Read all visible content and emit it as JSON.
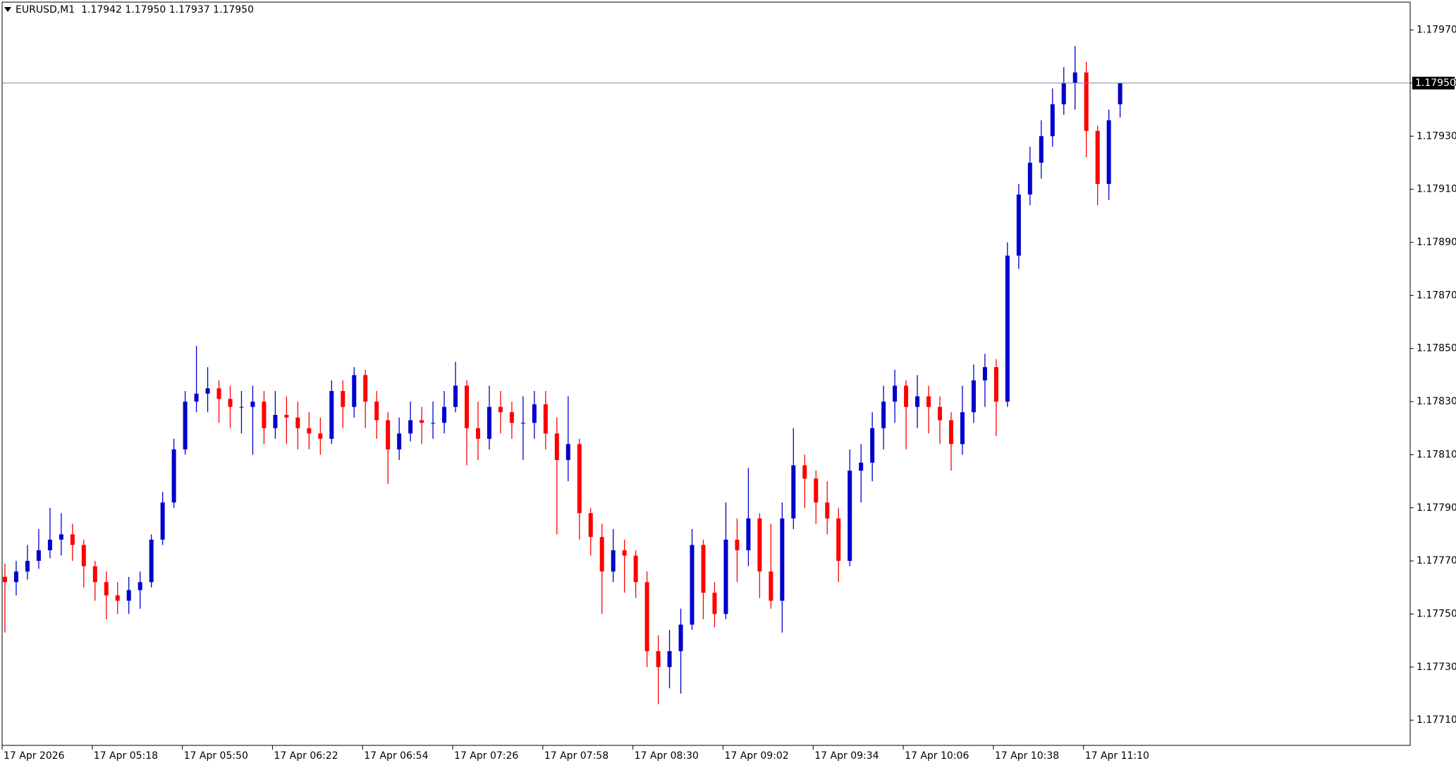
{
  "chart_data": {
    "type": "candlestick",
    "title": "EURUSD,M1  1.17942 1.17950 1.17937 1.17950",
    "up_color": "#0000cc",
    "down_color": "#ff0000",
    "last_price": {
      "value": 1.1795,
      "label": "1.17950"
    },
    "ylim": [
      1.177005,
      1.179805
    ],
    "yticks": [
      {
        "value": 1.1771,
        "label": "1.17710"
      },
      {
        "value": 1.1773,
        "label": "1.17730"
      },
      {
        "value": 1.1775,
        "label": "1.17750"
      },
      {
        "value": 1.1777,
        "label": "1.17770"
      },
      {
        "value": 1.1779,
        "label": "1.17790"
      },
      {
        "value": 1.1781,
        "label": "1.17810"
      },
      {
        "value": 1.1783,
        "label": "1.17830"
      },
      {
        "value": 1.1785,
        "label": "1.17850"
      },
      {
        "value": 1.1787,
        "label": "1.17870"
      },
      {
        "value": 1.1789,
        "label": "1.17890"
      },
      {
        "value": 1.1791,
        "label": "1.17910"
      },
      {
        "value": 1.1793,
        "label": "1.17930"
      },
      {
        "value": 1.1795,
        "label": "1.17950"
      },
      {
        "value": 1.1797,
        "label": "1.17970"
      }
    ],
    "xlim": [
      0,
      125
    ],
    "xticks": [
      {
        "value": 0,
        "label": "17 Apr 2026"
      },
      {
        "value": 8,
        "label": "17 Apr 05:18"
      },
      {
        "value": 16,
        "label": "17 Apr 05:50"
      },
      {
        "value": 24,
        "label": "17 Apr 06:22"
      },
      {
        "value": 32,
        "label": "17 Apr 06:54"
      },
      {
        "value": 40,
        "label": "17 Apr 07:26"
      },
      {
        "value": 48,
        "label": "17 Apr 07:58"
      },
      {
        "value": 56,
        "label": "17 Apr 08:30"
      },
      {
        "value": 64,
        "label": "17 Apr 09:02"
      },
      {
        "value": 72,
        "label": "17 Apr 09:34"
      },
      {
        "value": 80,
        "label": "17 Apr 10:06"
      },
      {
        "value": 88,
        "label": "17 Apr 10:38"
      },
      {
        "value": 96,
        "label": "17 Apr 11:10"
      }
    ],
    "candles": [
      [
        1.17764,
        1.17769,
        1.17743,
        1.17762
      ],
      [
        1.17762,
        1.1777,
        1.17757,
        1.17766
      ],
      [
        1.17766,
        1.17776,
        1.17763,
        1.1777
      ],
      [
        1.1777,
        1.17782,
        1.17767,
        1.17774
      ],
      [
        1.17774,
        1.1779,
        1.17771,
        1.17778
      ],
      [
        1.17778,
        1.17788,
        1.17772,
        1.1778
      ],
      [
        1.1778,
        1.17784,
        1.1777,
        1.17776
      ],
      [
        1.17776,
        1.17778,
        1.1776,
        1.17768
      ],
      [
        1.17768,
        1.1777,
        1.17755,
        1.17762
      ],
      [
        1.17762,
        1.17766,
        1.17748,
        1.17757
      ],
      [
        1.17757,
        1.17762,
        1.1775,
        1.17755
      ],
      [
        1.17755,
        1.17764,
        1.1775,
        1.17759
      ],
      [
        1.17759,
        1.17766,
        1.17752,
        1.17762
      ],
      [
        1.17762,
        1.1778,
        1.1776,
        1.17778
      ],
      [
        1.17778,
        1.17796,
        1.17776,
        1.17792
      ],
      [
        1.17792,
        1.17816,
        1.1779,
        1.17812
      ],
      [
        1.17812,
        1.17834,
        1.1781,
        1.1783
      ],
      [
        1.1783,
        1.17851,
        1.17826,
        1.17833
      ],
      [
        1.17833,
        1.17843,
        1.17826,
        1.17835
      ],
      [
        1.17835,
        1.17838,
        1.17822,
        1.17831
      ],
      [
        1.17831,
        1.17836,
        1.1782,
        1.17828
      ],
      [
        1.17828,
        1.17834,
        1.17818,
        1.17828
      ],
      [
        1.17828,
        1.17836,
        1.1781,
        1.1783
      ],
      [
        1.1783,
        1.17834,
        1.17814,
        1.1782
      ],
      [
        1.1782,
        1.17834,
        1.17816,
        1.17825
      ],
      [
        1.17825,
        1.17832,
        1.17814,
        1.17824
      ],
      [
        1.17824,
        1.1783,
        1.17812,
        1.1782
      ],
      [
        1.1782,
        1.17826,
        1.17812,
        1.17818
      ],
      [
        1.17818,
        1.17824,
        1.1781,
        1.17816
      ],
      [
        1.17816,
        1.17838,
        1.17814,
        1.17834
      ],
      [
        1.17834,
        1.17838,
        1.1782,
        1.17828
      ],
      [
        1.17828,
        1.17843,
        1.17824,
        1.1784
      ],
      [
        1.1784,
        1.17842,
        1.1782,
        1.1783
      ],
      [
        1.1783,
        1.17834,
        1.17816,
        1.17823
      ],
      [
        1.17823,
        1.17826,
        1.17799,
        1.17812
      ],
      [
        1.17812,
        1.17824,
        1.17808,
        1.17818
      ],
      [
        1.17818,
        1.1783,
        1.17815,
        1.17823
      ],
      [
        1.17823,
        1.17828,
        1.17814,
        1.17822
      ],
      [
        1.17822,
        1.1783,
        1.17816,
        1.17822
      ],
      [
        1.17822,
        1.17834,
        1.17818,
        1.17828
      ],
      [
        1.17828,
        1.17845,
        1.17826,
        1.17836
      ],
      [
        1.17836,
        1.17838,
        1.17806,
        1.1782
      ],
      [
        1.1782,
        1.1783,
        1.17808,
        1.17816
      ],
      [
        1.17816,
        1.17836,
        1.17812,
        1.17828
      ],
      [
        1.17828,
        1.17834,
        1.17818,
        1.17826
      ],
      [
        1.17826,
        1.1783,
        1.17816,
        1.17822
      ],
      [
        1.17822,
        1.17832,
        1.17808,
        1.17822
      ],
      [
        1.17822,
        1.17834,
        1.17816,
        1.17829
      ],
      [
        1.17829,
        1.17834,
        1.17812,
        1.17818
      ],
      [
        1.17818,
        1.17824,
        1.1778,
        1.17808
      ],
      [
        1.17808,
        1.17832,
        1.178,
        1.17814
      ],
      [
        1.17814,
        1.17816,
        1.17778,
        1.17788
      ],
      [
        1.17788,
        1.1779,
        1.17772,
        1.17779
      ],
      [
        1.17779,
        1.17784,
        1.1775,
        1.17766
      ],
      [
        1.17766,
        1.17782,
        1.17762,
        1.17774
      ],
      [
        1.17774,
        1.17778,
        1.17758,
        1.17772
      ],
      [
        1.17772,
        1.17774,
        1.17756,
        1.17762
      ],
      [
        1.17762,
        1.17766,
        1.1773,
        1.17736
      ],
      [
        1.17736,
        1.17742,
        1.17716,
        1.1773
      ],
      [
        1.1773,
        1.17744,
        1.17722,
        1.17736
      ],
      [
        1.17736,
        1.17752,
        1.1772,
        1.17746
      ],
      [
        1.17746,
        1.17782,
        1.17744,
        1.17776
      ],
      [
        1.17776,
        1.17778,
        1.17748,
        1.17758
      ],
      [
        1.17758,
        1.17762,
        1.17745,
        1.1775
      ],
      [
        1.1775,
        1.17792,
        1.17748,
        1.17778
      ],
      [
        1.17778,
        1.17786,
        1.17762,
        1.17774
      ],
      [
        1.17774,
        1.17805,
        1.17768,
        1.17786
      ],
      [
        1.17786,
        1.17788,
        1.17756,
        1.17766
      ],
      [
        1.17766,
        1.17784,
        1.17752,
        1.17755
      ],
      [
        1.17755,
        1.17792,
        1.17743,
        1.17786
      ],
      [
        1.17786,
        1.1782,
        1.17782,
        1.17806
      ],
      [
        1.17806,
        1.1781,
        1.1779,
        1.17801
      ],
      [
        1.17801,
        1.17804,
        1.17784,
        1.17792
      ],
      [
        1.17792,
        1.178,
        1.1778,
        1.17786
      ],
      [
        1.17786,
        1.1779,
        1.17762,
        1.1777
      ],
      [
        1.1777,
        1.17812,
        1.17768,
        1.17804
      ],
      [
        1.17804,
        1.17814,
        1.17792,
        1.17807
      ],
      [
        1.17807,
        1.17826,
        1.178,
        1.1782
      ],
      [
        1.1782,
        1.17836,
        1.17812,
        1.1783
      ],
      [
        1.1783,
        1.17842,
        1.17822,
        1.17836
      ],
      [
        1.17836,
        1.17838,
        1.17812,
        1.17828
      ],
      [
        1.17828,
        1.1784,
        1.1782,
        1.17832
      ],
      [
        1.17832,
        1.17836,
        1.17818,
        1.17828
      ],
      [
        1.17828,
        1.17832,
        1.17814,
        1.17823
      ],
      [
        1.17823,
        1.17826,
        1.17804,
        1.17814
      ],
      [
        1.17814,
        1.17836,
        1.1781,
        1.17826
      ],
      [
        1.17826,
        1.17844,
        1.17822,
        1.17838
      ],
      [
        1.17838,
        1.17848,
        1.17828,
        1.17843
      ],
      [
        1.17843,
        1.17846,
        1.17817,
        1.1783
      ],
      [
        1.1783,
        1.1789,
        1.17828,
        1.17885
      ],
      [
        1.17885,
        1.17912,
        1.1788,
        1.17908
      ],
      [
        1.17908,
        1.17926,
        1.17904,
        1.1792
      ],
      [
        1.1792,
        1.17936,
        1.17914,
        1.1793
      ],
      [
        1.1793,
        1.17948,
        1.17926,
        1.17942
      ],
      [
        1.17942,
        1.17956,
        1.17938,
        1.1795
      ],
      [
        1.1795,
        1.17964,
        1.1794,
        1.17954
      ],
      [
        1.17954,
        1.17958,
        1.17922,
        1.17932
      ],
      [
        1.17932,
        1.17934,
        1.17904,
        1.17912
      ],
      [
        1.17912,
        1.1794,
        1.17906,
        1.17936
      ],
      [
        1.17942,
        1.1795,
        1.17937,
        1.1795
      ]
    ]
  }
}
